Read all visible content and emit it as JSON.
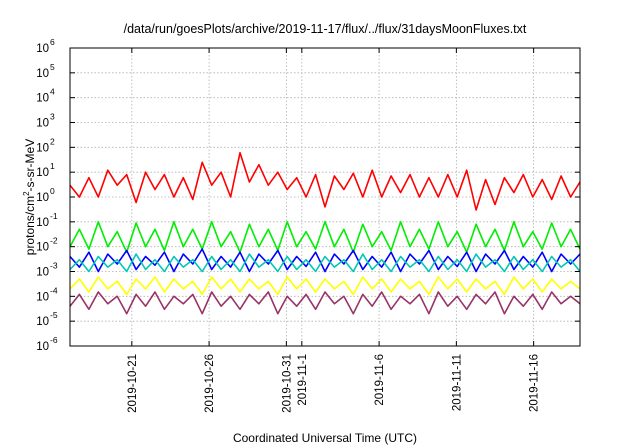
{
  "chart_data": {
    "type": "line",
    "title": "/data/run/goesPlots/archive/2019-11-17/flux/../flux/31daysMoonFluxes.txt",
    "xlabel": "Coordinated Universal Time (UTC)",
    "ylabel": "protons/cm2-s-sr-MeV",
    "ylabel_parts": {
      "base": "protons/cm",
      "sup": "2",
      "rest": "-s-sr-MeV"
    },
    "y_scale": "log",
    "ylim": [
      1e-06,
      1000000.0
    ],
    "xlim": [
      "2019-10-17",
      "2019-11-19"
    ],
    "y_ticks": [
      {
        "base": "10",
        "exp": "-6"
      },
      {
        "base": "10",
        "exp": "-5"
      },
      {
        "base": "10",
        "exp": "-4"
      },
      {
        "base": "10",
        "exp": "-3"
      },
      {
        "base": "10",
        "exp": "-2"
      },
      {
        "base": "10",
        "exp": "-1"
      },
      {
        "base": "10",
        "exp": "0"
      },
      {
        "base": "10",
        "exp": "1"
      },
      {
        "base": "10",
        "exp": "2"
      },
      {
        "base": "10",
        "exp": "3"
      },
      {
        "base": "10",
        "exp": "4"
      },
      {
        "base": "10",
        "exp": "5"
      },
      {
        "base": "10",
        "exp": "6"
      }
    ],
    "x_ticks": [
      "2019-10-21",
      "2019-10-26",
      "2019-10-31",
      "2019-11-1",
      "2019-11-6",
      "2019-11-11",
      "2019-11-16"
    ],
    "grid": true,
    "legend": "none",
    "series": [
      {
        "color": "#ff0000",
        "values": [
          3.0,
          1.0,
          6.0,
          1.0,
          12.0,
          3.0,
          8.0,
          0.6,
          10.0,
          2.0,
          8.0,
          1.0,
          6.0,
          0.8,
          25.0,
          3.0,
          10.0,
          1.0,
          60.0,
          4.0,
          20.0,
          3.0,
          10.0,
          2.0,
          6.0,
          1.0,
          8.0,
          0.4,
          7.0,
          2.0,
          9.0,
          1.0,
          12.0,
          1.0,
          7.0,
          1.5,
          8.0,
          1.0,
          6.0,
          1.0,
          8.0,
          1.0,
          12.0,
          0.3,
          5.0,
          0.5,
          6.0,
          1.5,
          8.0,
          1.0,
          5.0,
          0.8,
          7.0,
          1.0,
          4.0
        ]
      },
      {
        "color": "#00ee00",
        "values": [
          0.01,
          0.05,
          0.008,
          0.1,
          0.01,
          0.04,
          0.006,
          0.09,
          0.01,
          0.05,
          0.007,
          0.1,
          0.01,
          0.05,
          0.008,
          0.1,
          0.01,
          0.04,
          0.006,
          0.08,
          0.01,
          0.05,
          0.007,
          0.1,
          0.01,
          0.04,
          0.008,
          0.1,
          0.01,
          0.05,
          0.006,
          0.08,
          0.01,
          0.04,
          0.007,
          0.1,
          0.01,
          0.05,
          0.008,
          0.1,
          0.01,
          0.04,
          0.006,
          0.08,
          0.01,
          0.05,
          0.007,
          0.1,
          0.01,
          0.04,
          0.008,
          0.09,
          0.01,
          0.05,
          0.008
        ]
      },
      {
        "color": "#0000ff",
        "values": [
          0.004,
          0.0015,
          0.006,
          0.001,
          0.005,
          0.002,
          0.007,
          0.0012,
          0.004,
          0.0018,
          0.006,
          0.001,
          0.005,
          0.002,
          0.008,
          0.0012,
          0.004,
          0.0015,
          0.006,
          0.001,
          0.005,
          0.002,
          0.007,
          0.0012,
          0.004,
          0.0016,
          0.006,
          0.001,
          0.005,
          0.002,
          0.007,
          0.0012,
          0.004,
          0.0015,
          0.006,
          0.001,
          0.005,
          0.002,
          0.007,
          0.0012,
          0.004,
          0.0016,
          0.006,
          0.001,
          0.005,
          0.002,
          0.007,
          0.0012,
          0.004,
          0.0015,
          0.006,
          0.001,
          0.005,
          0.002,
          0.005
        ]
      },
      {
        "color": "#00c8b4",
        "values": [
          0.0012,
          0.003,
          0.001,
          0.004,
          0.0015,
          0.003,
          0.001,
          0.005,
          0.0012,
          0.003,
          0.001,
          0.004,
          0.0015,
          0.003,
          0.001,
          0.004,
          0.0012,
          0.003,
          0.001,
          0.005,
          0.0015,
          0.003,
          0.001,
          0.004,
          0.0012,
          0.003,
          0.001,
          0.004,
          0.0015,
          0.003,
          0.001,
          0.005,
          0.0012,
          0.003,
          0.001,
          0.004,
          0.0015,
          0.003,
          0.001,
          0.004,
          0.0012,
          0.003,
          0.001,
          0.005,
          0.0015,
          0.003,
          0.001,
          0.004,
          0.0012,
          0.003,
          0.001,
          0.004,
          0.0015,
          0.003,
          0.001
        ]
      },
      {
        "color": "#ffff00",
        "values": [
          0.0002,
          0.0005,
          0.00015,
          0.0006,
          0.0002,
          0.0004,
          0.00012,
          0.0005,
          0.0002,
          0.0006,
          0.00015,
          0.0005,
          0.0002,
          0.0004,
          0.00012,
          0.0006,
          0.0002,
          0.0005,
          0.00015,
          0.0005,
          0.0002,
          0.0004,
          0.00012,
          0.0006,
          0.0002,
          0.0005,
          0.00015,
          0.0005,
          0.0002,
          0.0004,
          0.00012,
          0.0006,
          0.0002,
          0.0005,
          0.00015,
          0.0005,
          0.0002,
          0.0004,
          0.00012,
          0.0006,
          0.0002,
          0.0005,
          0.00015,
          0.0005,
          0.0002,
          0.0004,
          0.00012,
          0.0006,
          0.0002,
          0.0005,
          0.00015,
          0.0005,
          0.0002,
          0.0004,
          0.0002
        ]
      },
      {
        "color": "#993366",
        "values": [
          4e-05,
          0.00012,
          3e-05,
          0.00015,
          5e-05,
          0.0001,
          2e-05,
          0.00012,
          4e-05,
          0.00015,
          3e-05,
          0.0001,
          5e-05,
          0.00012,
          2e-05,
          0.00015,
          4e-05,
          0.0001,
          3e-05,
          0.00012,
          5e-05,
          0.00015,
          2e-05,
          0.0001,
          4e-05,
          0.00012,
          3e-05,
          0.00015,
          5e-05,
          0.0001,
          2e-05,
          0.00012,
          4e-05,
          0.00015,
          3e-05,
          0.0001,
          5e-05,
          0.00012,
          2e-05,
          0.00015,
          4e-05,
          0.0001,
          3e-05,
          0.00012,
          5e-05,
          0.00015,
          2e-05,
          0.0001,
          4e-05,
          0.00012,
          3e-05,
          0.00015,
          5e-05,
          0.0001,
          5e-05
        ]
      }
    ]
  }
}
